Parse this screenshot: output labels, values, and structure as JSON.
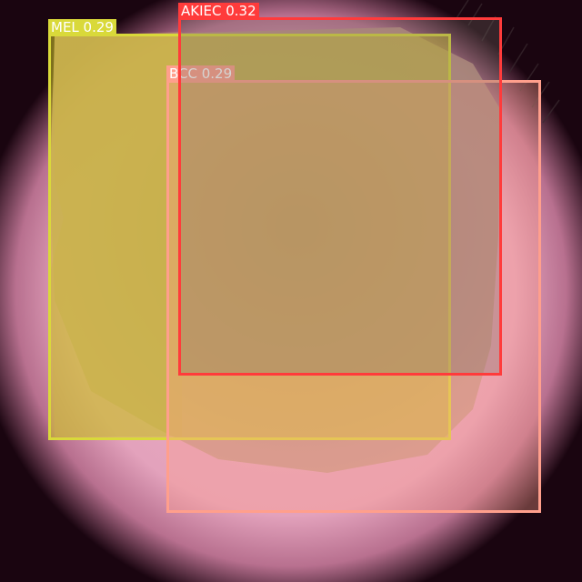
{
  "detections": [
    {
      "id": "mel",
      "label": "MEL",
      "score": "0.29",
      "color": "#d9d93a",
      "fill": "rgba(210,200,40,0.55)"
    },
    {
      "id": "bcc",
      "label": "BCC",
      "score": "0.29",
      "color": "#ff9f8c",
      "fill": "rgba(255,160,140,0.35)"
    },
    {
      "id": "akiec",
      "label": "AKIEC",
      "score": "0.32",
      "color": "#ff3b3b",
      "fill": "rgba(120,110,100,0.30)"
    }
  ],
  "colors": {
    "skin": "#e8a6bf",
    "vignette": "#1a0510",
    "lesion": "#9a7a68"
  }
}
